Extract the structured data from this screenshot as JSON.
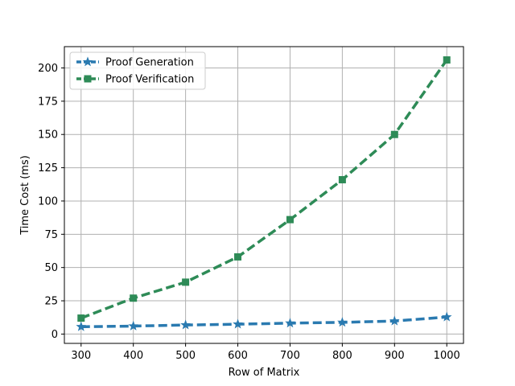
{
  "chart_data": {
    "type": "line",
    "title": "",
    "xlabel": "Row of Matrix",
    "ylabel": "Time Cost (ms)",
    "x": [
      300,
      400,
      500,
      600,
      700,
      800,
      900,
      1000
    ],
    "xticks": [
      300,
      400,
      500,
      600,
      700,
      800,
      900,
      1000
    ],
    "yticks": [
      0,
      25,
      50,
      75,
      100,
      125,
      150,
      175,
      200
    ],
    "xlim": [
      268,
      1032
    ],
    "ylim": [
      -7,
      216
    ],
    "grid": true,
    "legend_position": "top-left",
    "series": [
      {
        "name": "Proof Generation",
        "values": [
          5.5,
          6.0,
          6.8,
          7.4,
          8.2,
          8.8,
          9.8,
          12.8
        ],
        "color": "#2a7ab0",
        "marker": "star",
        "linestyle": "dashed"
      },
      {
        "name": "Proof Verification",
        "values": [
          12,
          27,
          39,
          58,
          86,
          116,
          150,
          206
        ],
        "color": "#2e8b57",
        "marker": "square",
        "linestyle": "dashed"
      }
    ]
  }
}
